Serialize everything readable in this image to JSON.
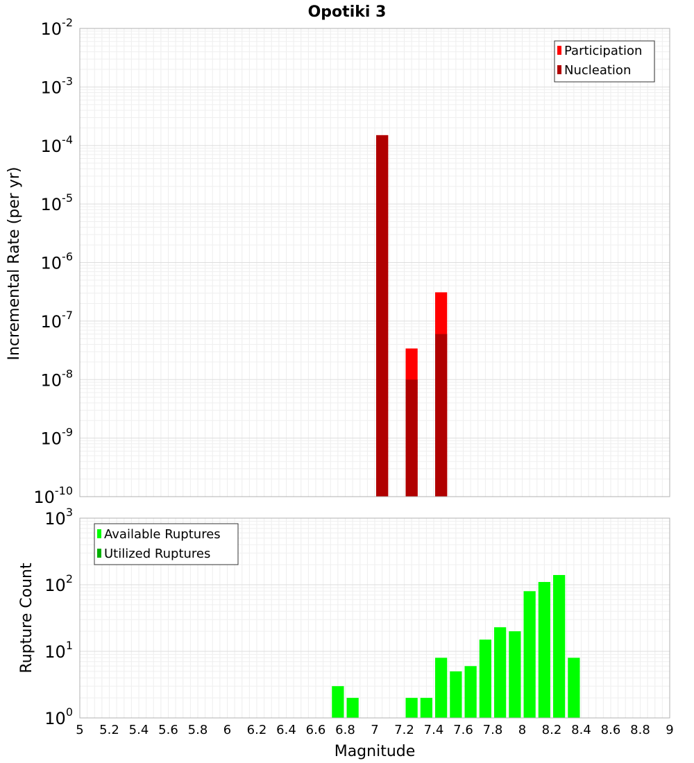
{
  "title": "Opotiki 3",
  "chart_data": [
    {
      "type": "bar",
      "scale": "log",
      "ylabel": "Incremental Rate (per yr)",
      "xlim": [
        5,
        9
      ],
      "ylim_exponents": [
        -10,
        -2
      ],
      "grid": true,
      "legend_position": "top-right",
      "series": [
        {
          "name": "Participation",
          "color": "#ff0000",
          "x": [
            7.05,
            7.25,
            7.45
          ],
          "values": [
            0.00015,
            3.4e-08,
            3.1e-07
          ]
        },
        {
          "name": "Nucleation",
          "color": "#b00000",
          "x": [
            7.05,
            7.25,
            7.45
          ],
          "values": [
            0.00015,
            1e-08,
            6e-08
          ]
        }
      ]
    },
    {
      "type": "bar",
      "scale": "log",
      "ylabel": "Rupture Count",
      "xlabel": "Magnitude",
      "xlim": [
        5,
        9
      ],
      "ylim_exponents": [
        0,
        3
      ],
      "grid": true,
      "legend_position": "top-left",
      "series": [
        {
          "name": "Available Ruptures",
          "color": "#00ff00",
          "x": [
            6.75,
            6.85,
            7.25,
            7.35,
            7.45,
            7.55,
            7.65,
            7.75,
            7.85,
            7.95,
            8.05,
            8.15,
            8.25,
            8.35
          ],
          "values": [
            3,
            2,
            2,
            2,
            8,
            5,
            6,
            15,
            23,
            20,
            80,
            110,
            140,
            8
          ]
        },
        {
          "name": "Utilized Ruptures",
          "color": "#00b000",
          "x": [
            7.05,
            7.25,
            7.45
          ],
          "values": [
            1,
            1,
            1
          ]
        }
      ]
    }
  ],
  "xticks": [
    "5",
    "5.2",
    "5.4",
    "5.6",
    "5.8",
    "6",
    "6.2",
    "6.4",
    "6.6",
    "6.8",
    "7",
    "7.2",
    "7.4",
    "7.6",
    "7.8",
    "8",
    "8.2",
    "8.4",
    "8.6",
    "8.8",
    "9"
  ],
  "top_yticks": [
    {
      "base": "10",
      "exp": "-2"
    },
    {
      "base": "10",
      "exp": "-3"
    },
    {
      "base": "10",
      "exp": "-4"
    },
    {
      "base": "10",
      "exp": "-5"
    },
    {
      "base": "10",
      "exp": "-6"
    },
    {
      "base": "10",
      "exp": "-7"
    },
    {
      "base": "10",
      "exp": "-8"
    },
    {
      "base": "10",
      "exp": "-9"
    },
    {
      "base": "10",
      "exp": "-10"
    }
  ],
  "bottom_yticks": [
    {
      "base": "10",
      "exp": "3"
    },
    {
      "base": "10",
      "exp": "2"
    },
    {
      "base": "10",
      "exp": "1"
    },
    {
      "base": "10",
      "exp": "0"
    }
  ]
}
